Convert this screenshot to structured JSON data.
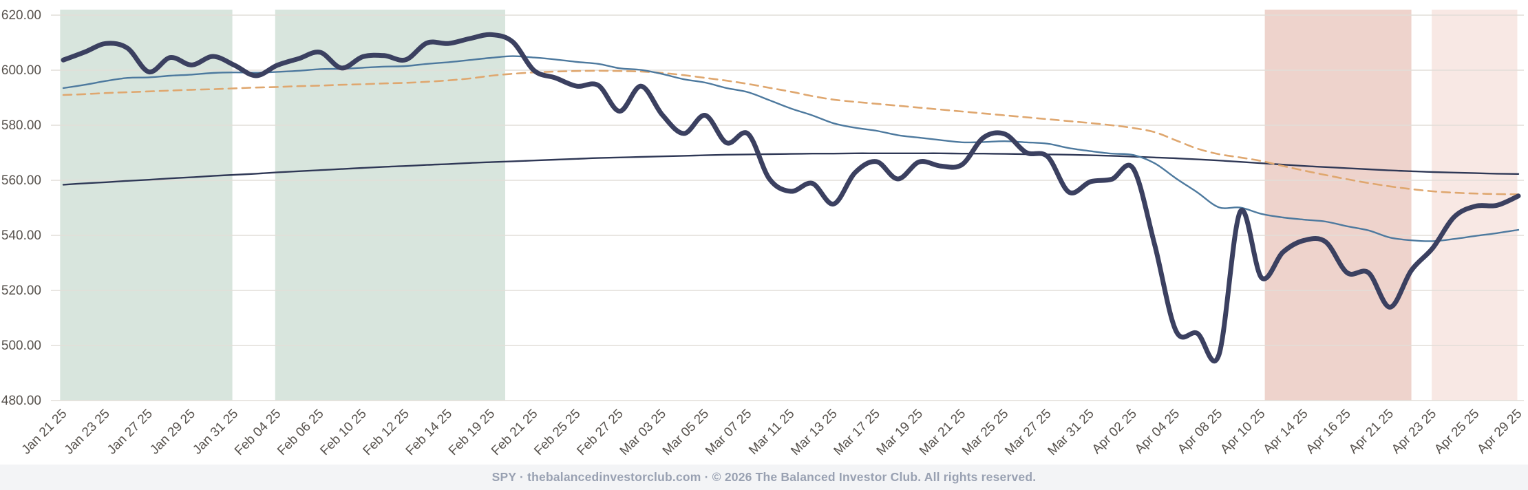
{
  "chart_data": {
    "type": "line",
    "title": "",
    "grid": true,
    "x_axis": {
      "num_points": 69,
      "tick_day_indices": [
        0,
        2,
        4,
        6,
        8,
        10,
        12,
        14,
        16,
        18,
        20,
        22,
        24,
        26,
        28,
        30,
        32,
        34,
        36,
        38,
        40,
        42,
        44,
        46,
        48,
        50,
        52,
        54,
        56,
        58,
        60,
        62,
        64,
        66,
        68
      ],
      "tick_labels": [
        "Jan 21 25",
        "Jan 23 25",
        "Jan 27 25",
        "Jan 29 25",
        "Jan 31 25",
        "Feb 04 25",
        "Feb 06 25",
        "Feb 10 25",
        "Feb 12 25",
        "Feb 14 25",
        "Feb 19 25",
        "Feb 21 25",
        "Feb 25 25",
        "Feb 27 25",
        "Mar 03 25",
        "Mar 05 25",
        "Mar 07 25",
        "Mar 11 25",
        "Mar 13 25",
        "Mar 17 25",
        "Mar 19 25",
        "Mar 21 25",
        "Mar 25 25",
        "Mar 27 25",
        "Mar 31 25",
        "Apr 02 25",
        "Apr 04 25",
        "Apr 08 25",
        "Apr 10 25",
        "Apr 14 25",
        "Apr 16 25",
        "Apr 21 25",
        "Apr 23 25",
        "Apr 25 25",
        "Apr 29 25"
      ]
    },
    "y_axis": {
      "min": 480,
      "max": 620,
      "tick_values": [
        620,
        600,
        580,
        560,
        540,
        520,
        500,
        480
      ],
      "tick_labels": [
        "620.00",
        "600.00",
        "580.00",
        "560.00",
        "540.00",
        "520.00",
        "500.00",
        "480.00"
      ]
    },
    "regions": [
      {
        "id": "green-band-1",
        "color": "#d8e5dd",
        "start_day": -0.15,
        "end_day": 7.9
      },
      {
        "id": "green-band-2",
        "color": "#d8e5dd",
        "start_day": 9.9,
        "end_day": 20.65
      },
      {
        "id": "red-band",
        "color": "#eed3cc",
        "start_day": 56.15,
        "end_day": 63.0
      },
      {
        "id": "pink-band",
        "color": "#f8e8e4",
        "start_day": 63.95,
        "end_day": 67.95
      }
    ],
    "series": [
      {
        "id": "slow-ma-dark-line",
        "color": "#2f3856",
        "width": 2.4,
        "dash": "",
        "values": [
          558.4,
          558.9,
          559.3,
          559.8,
          560.2,
          560.7,
          561.1,
          561.6,
          562.0,
          562.4,
          562.9,
          563.3,
          563.7,
          564.1,
          564.5,
          564.9,
          565.2,
          565.6,
          565.9,
          566.3,
          566.6,
          566.9,
          567.2,
          567.5,
          567.8,
          568.1,
          568.3,
          568.5,
          568.7,
          568.9,
          569.1,
          569.3,
          569.4,
          569.5,
          569.6,
          569.7,
          569.7,
          569.8,
          569.8,
          569.8,
          569.8,
          569.8,
          569.7,
          569.7,
          569.6,
          569.5,
          569.4,
          569.3,
          569.1,
          568.9,
          568.6,
          568.3,
          568.0,
          567.6,
          567.2,
          566.7,
          566.2,
          565.7,
          565.2,
          564.8,
          564.4,
          564.0,
          563.6,
          563.3,
          563.0,
          562.8,
          562.6,
          562.4,
          562.3
        ]
      },
      {
        "id": "mid-ma-orange-dashed-line",
        "color": "#dfa76f",
        "width": 2.6,
        "dash": "12 8",
        "values": [
          591.0,
          591.3,
          591.7,
          592.0,
          592.3,
          592.6,
          592.9,
          593.1,
          593.4,
          593.7,
          593.9,
          594.2,
          594.4,
          594.7,
          594.9,
          595.2,
          595.4,
          595.8,
          596.3,
          597.0,
          598.0,
          598.7,
          599.2,
          599.5,
          599.7,
          599.8,
          599.7,
          599.5,
          599.0,
          598.2,
          597.2,
          596.2,
          595.0,
          593.6,
          592.2,
          590.6,
          589.3,
          588.5,
          587.8,
          587.1,
          586.4,
          585.7,
          585.0,
          584.3,
          583.6,
          582.9,
          582.2,
          581.5,
          580.8,
          580.0,
          579.0,
          577.5,
          574.5,
          571.5,
          569.5,
          568.3,
          567.0,
          565.2,
          563.5,
          561.9,
          560.4,
          559.0,
          557.8,
          556.8,
          556.0,
          555.5,
          555.2,
          555.0,
          554.9
        ]
      },
      {
        "id": "fast-ma-blue-line",
        "color": "#4d799e",
        "width": 2.4,
        "dash": "",
        "values": [
          593.5,
          594.7,
          596.1,
          597.2,
          597.4,
          598.0,
          598.4,
          599.0,
          599.2,
          599.1,
          599.4,
          599.8,
          600.4,
          600.5,
          600.9,
          601.3,
          601.5,
          602.3,
          602.9,
          603.7,
          604.5,
          605.1,
          604.6,
          603.9,
          603.0,
          602.3,
          600.7,
          600.1,
          598.6,
          596.7,
          595.5,
          593.5,
          592.0,
          589.1,
          586.1,
          583.6,
          580.7,
          579.1,
          578.0,
          576.4,
          575.5,
          574.6,
          573.8,
          573.9,
          574.2,
          573.8,
          573.3,
          571.7,
          570.6,
          569.7,
          569.2,
          566.2,
          560.7,
          555.6,
          550.2,
          550.1,
          547.8,
          546.5,
          545.7,
          545.0,
          543.3,
          541.8,
          539.2,
          538.2,
          537.9,
          538.7,
          539.8,
          540.8,
          542.0
        ]
      },
      {
        "id": "spy-price-line",
        "color": "#3b4060",
        "width": 7,
        "dash": "",
        "values": [
          603.7,
          606.6,
          609.7,
          608.0,
          599.4,
          604.6,
          601.9,
          605.0,
          601.8,
          598.0,
          601.8,
          604.2,
          606.5,
          600.8,
          604.9,
          605.3,
          603.8,
          609.9,
          609.7,
          611.5,
          612.9,
          610.3,
          599.9,
          597.2,
          594.2,
          594.5,
          585.1,
          594.2,
          583.7,
          577.0,
          583.6,
          573.6,
          576.9,
          560.5,
          556.0,
          558.9,
          551.4,
          562.8,
          566.8,
          560.5,
          566.7,
          565.2,
          565.7,
          575.5,
          576.8,
          570.1,
          568.6,
          555.7,
          559.5,
          560.4,
          564.3,
          536.7,
          505.3,
          504.4,
          496.5,
          548.6,
          524.6,
          533.9,
          538.2,
          537.6,
          526.4,
          526.4,
          513.9,
          527.3,
          535.4,
          546.7,
          550.6,
          550.9,
          554.3
        ]
      }
    ],
    "colors": {
      "gridline": "#e2ded8",
      "axis_text": "#57524d"
    }
  },
  "footer": {
    "text": "SPY · thebalancedinvestorclub.com · © 2026 The Balanced Investor Club. All rights reserved."
  }
}
